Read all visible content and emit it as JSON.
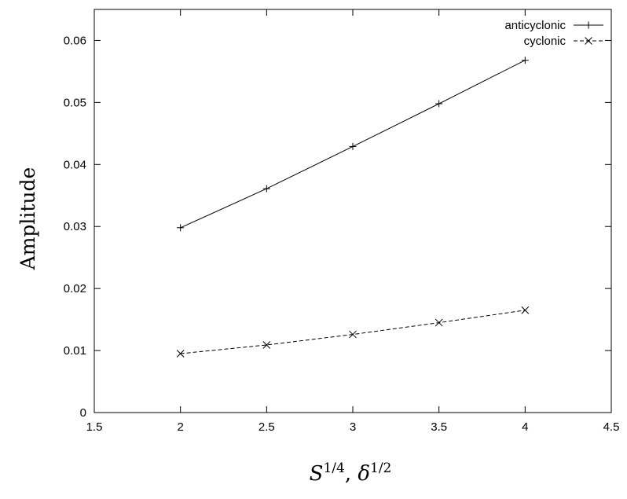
{
  "chart_data": {
    "type": "line",
    "title": "",
    "xlabel": {
      "base1": "S",
      "sup1": "1/4",
      "sep": ", ",
      "base2": "δ",
      "sup2": "1/2"
    },
    "ylabel": "Amplitude",
    "xlim": [
      1.5,
      4.5
    ],
    "ylim": [
      0,
      0.065
    ],
    "x_ticks": [
      "1.5",
      "2",
      "2.5",
      "3",
      "3.5",
      "4",
      "4.5"
    ],
    "y_ticks": [
      "0",
      "0.01",
      "0.02",
      "0.03",
      "0.04",
      "0.05",
      "0.06"
    ],
    "grid": false,
    "legend_position": "top-right",
    "series": [
      {
        "name": "anticyclonic",
        "line_style": "solid",
        "marker": "plus",
        "color": "#000000",
        "x": [
          2,
          2.5,
          3,
          3.5,
          4
        ],
        "y": [
          0.0298,
          0.0361,
          0.0429,
          0.0498,
          0.0568
        ]
      },
      {
        "name": "cyclonic",
        "line_style": "dashed",
        "marker": "cross",
        "color": "#000000",
        "x": [
          2,
          2.5,
          3,
          3.5,
          4
        ],
        "y": [
          0.0095,
          0.0109,
          0.0126,
          0.0145,
          0.0165
        ]
      }
    ]
  }
}
